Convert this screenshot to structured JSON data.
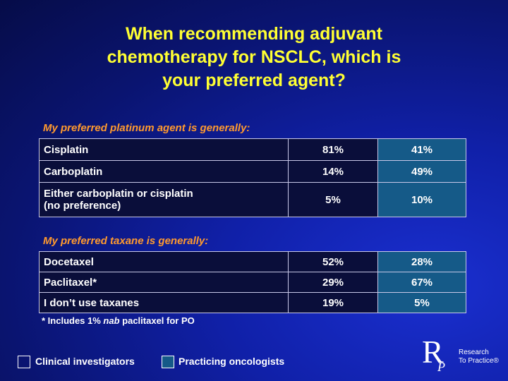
{
  "title": [
    "When recommending adjuvant",
    "chemotherapy for NSCLC, which is",
    "your preferred agent?"
  ],
  "sections": [
    {
      "heading": "My preferred platinum agent is generally:",
      "rows": [
        {
          "label": [
            "Cisplatin"
          ],
          "cells": [
            "81%",
            "41%"
          ]
        },
        {
          "label": [
            "Carboplatin"
          ],
          "cells": [
            "14%",
            "49%"
          ]
        },
        {
          "label": [
            "Either carboplatin or cisplatin",
            "(no preference)"
          ],
          "cells": [
            "5%",
            "10%"
          ]
        }
      ]
    },
    {
      "heading": "My preferred taxane is generally:",
      "rows": [
        {
          "label": [
            "Docetaxel"
          ],
          "cells": [
            "52%",
            "28%"
          ]
        },
        {
          "label": [
            "Paclitaxel*"
          ],
          "cells": [
            "29%",
            "67%"
          ]
        },
        {
          "label": [
            "I don’t use taxanes"
          ],
          "cells": [
            "19%",
            "5%"
          ]
        }
      ]
    }
  ],
  "footnote": [
    "* Includes 1% ",
    "nab",
    " paclitaxel for PO"
  ],
  "legend": [
    "Clinical investigators",
    "Practicing oncologists"
  ],
  "logo": {
    "letters": [
      "R",
      "P"
    ],
    "text": [
      "Research",
      "To Practice®"
    ]
  }
}
